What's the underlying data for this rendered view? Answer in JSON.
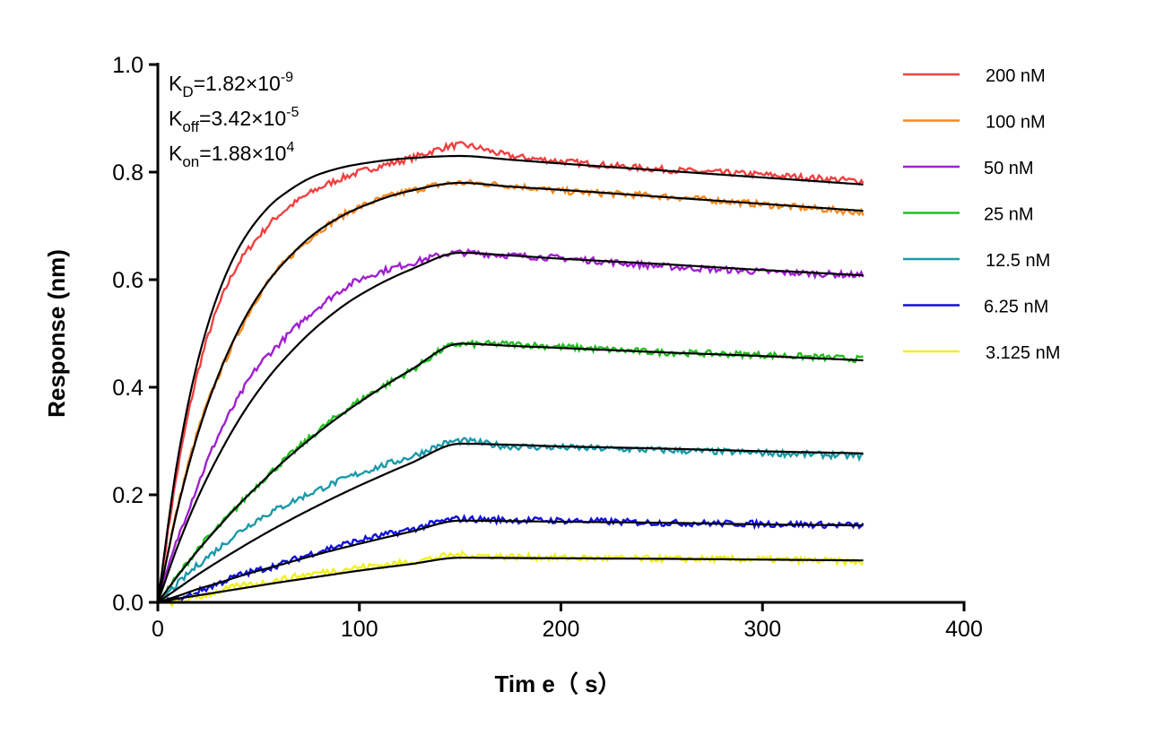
{
  "chart_data": {
    "type": "line",
    "xlabel": "Tim e（ s）",
    "ylabel": "Response (nm)",
    "xlim": [
      0,
      400
    ],
    "ylim": [
      0,
      1.0
    ],
    "xticks": [
      "0",
      "100",
      "200",
      "300",
      "400"
    ],
    "yticks": [
      "0.0",
      "0.2",
      "0.4",
      "0.6",
      "0.8",
      "1.0"
    ],
    "grid": false,
    "legend_placement": "top-right",
    "annotations": [
      {
        "main": "K",
        "sub": "D",
        "value": "=1.82×10",
        "sup": "-9"
      },
      {
        "main": "K",
        "sub": "off",
        "value": "=3.42×10",
        "sup": "-5"
      },
      {
        "main": "K",
        "sub": "on",
        "value": "=1.88×10",
        "sup": "4"
      }
    ],
    "x": [
      0,
      10,
      20,
      30,
      40,
      50,
      60,
      80,
      100,
      125,
      150,
      175,
      200,
      250,
      300,
      350
    ],
    "fit_color": "#000000",
    "series": [
      {
        "name": "200 nM",
        "color": "#f04040",
        "values": [
          0,
          0.25,
          0.43,
          0.55,
          0.63,
          0.68,
          0.72,
          0.77,
          0.8,
          0.825,
          0.85,
          0.83,
          0.82,
          0.805,
          0.795,
          0.783
        ],
        "fit": [
          0,
          0.269,
          0.451,
          0.574,
          0.658,
          0.714,
          0.752,
          0.796,
          0.815,
          0.826,
          0.83,
          0.823,
          0.816,
          0.803,
          0.79,
          0.777
        ]
      },
      {
        "name": "100 nM",
        "color": "#f58a1f",
        "values": [
          0,
          0.18,
          0.32,
          0.42,
          0.5,
          0.57,
          0.62,
          0.69,
          0.735,
          0.765,
          0.78,
          0.775,
          0.765,
          0.755,
          0.74,
          0.725
        ],
        "fit": [
          0,
          0.177,
          0.315,
          0.422,
          0.506,
          0.571,
          0.621,
          0.692,
          0.734,
          0.765,
          0.78,
          0.773,
          0.767,
          0.754,
          0.741,
          0.728
        ]
      },
      {
        "name": "50 nM",
        "color": "#a020d0",
        "values": [
          0,
          0.12,
          0.22,
          0.31,
          0.38,
          0.44,
          0.48,
          0.55,
          0.6,
          0.63,
          0.65,
          0.645,
          0.64,
          0.625,
          0.615,
          0.608
        ],
        "fit": [
          0,
          0.106,
          0.196,
          0.272,
          0.338,
          0.394,
          0.441,
          0.516,
          0.571,
          0.618,
          0.65,
          0.645,
          0.639,
          0.629,
          0.618,
          0.608
        ]
      },
      {
        "name": "25 nM",
        "color": "#20c020",
        "values": [
          0,
          0.05,
          0.1,
          0.14,
          0.18,
          0.22,
          0.255,
          0.32,
          0.375,
          0.43,
          0.48,
          0.48,
          0.475,
          0.465,
          0.46,
          0.452
        ],
        "fit": [
          0,
          0.05,
          0.097,
          0.14,
          0.181,
          0.218,
          0.254,
          0.317,
          0.372,
          0.431,
          0.481,
          0.477,
          0.473,
          0.465,
          0.458,
          0.45
        ]
      },
      {
        "name": "12.5 nM",
        "color": "#1a9aaa",
        "values": [
          0,
          0.035,
          0.07,
          0.1,
          0.13,
          0.155,
          0.175,
          0.21,
          0.24,
          0.27,
          0.3,
          0.29,
          0.288,
          0.283,
          0.278,
          0.272
        ],
        "fit": [
          0,
          0.026,
          0.052,
          0.076,
          0.099,
          0.121,
          0.142,
          0.181,
          0.217,
          0.258,
          0.295,
          0.293,
          0.29,
          0.286,
          0.281,
          0.277
        ]
      },
      {
        "name": "6.25 nM",
        "color": "#1010e0",
        "values": [
          0,
          0.005,
          0.02,
          0.035,
          0.05,
          0.06,
          0.07,
          0.095,
          0.115,
          0.135,
          0.155,
          0.153,
          0.152,
          0.148,
          0.146,
          0.143
        ],
        "fit": [
          0,
          0.012,
          0.025,
          0.036,
          0.048,
          0.059,
          0.069,
          0.09,
          0.109,
          0.131,
          0.152,
          0.151,
          0.15,
          0.148,
          0.145,
          0.143
        ]
      },
      {
        "name": "3.125 nM",
        "color": "#f0f020",
        "values": [
          0,
          0,
          0.01,
          0.02,
          0.03,
          0.035,
          0.042,
          0.055,
          0.065,
          0.075,
          0.088,
          0.085,
          0.083,
          0.081,
          0.08,
          0.075
        ],
        "fit": [
          0,
          0.007,
          0.013,
          0.019,
          0.025,
          0.031,
          0.037,
          0.048,
          0.059,
          0.071,
          0.083,
          0.0825,
          0.082,
          0.081,
          0.0795,
          0.078
        ]
      }
    ]
  }
}
